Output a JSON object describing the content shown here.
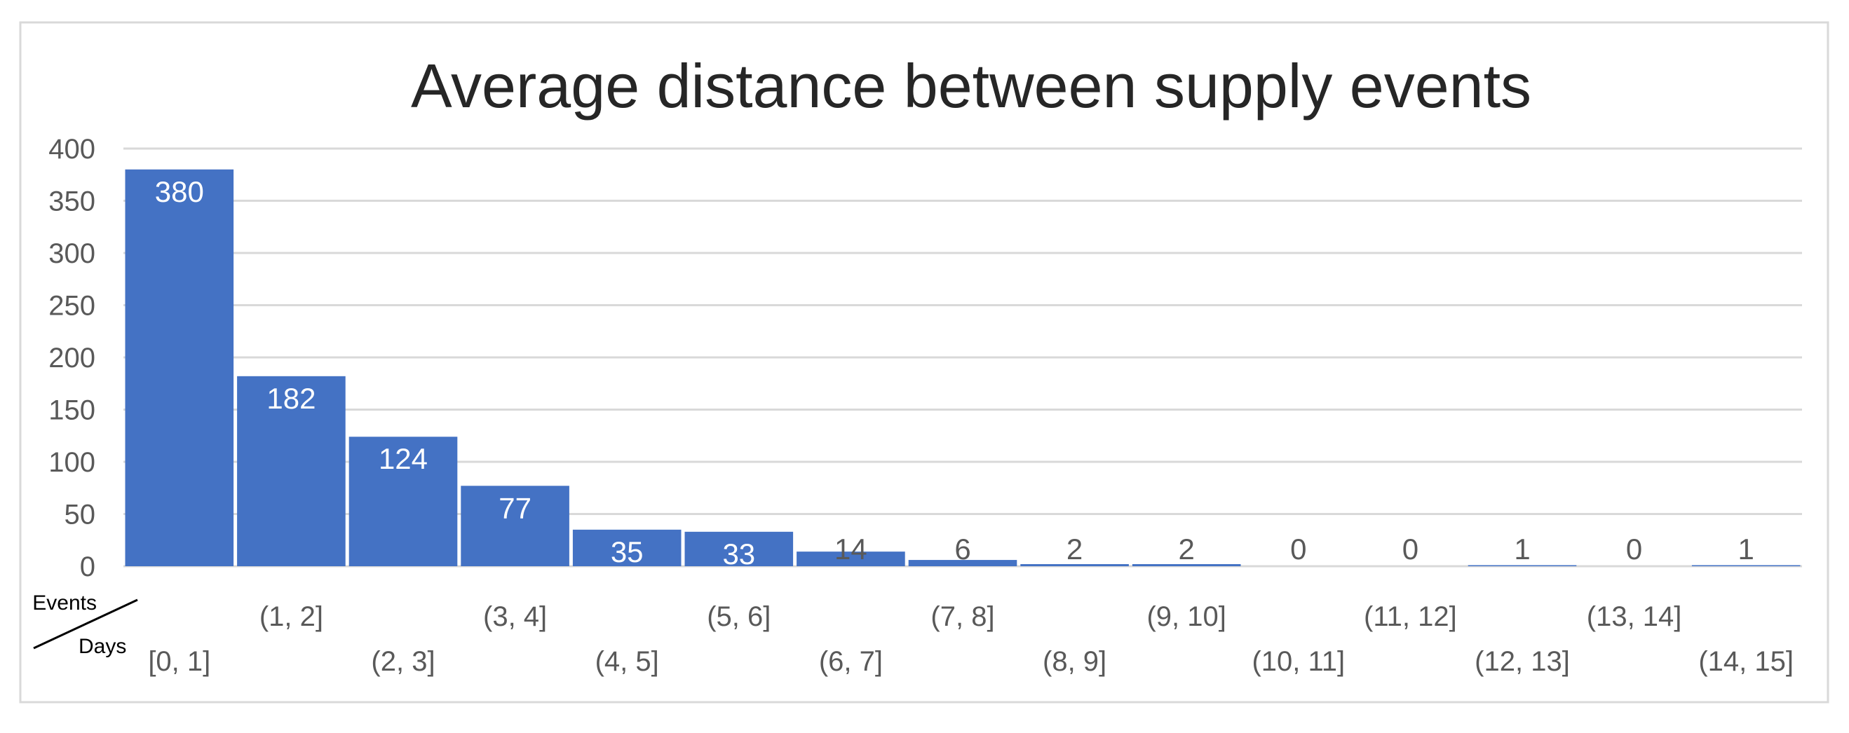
{
  "chart_data": {
    "type": "bar",
    "title": "Average distance between supply events",
    "xlabel": "Days",
    "ylabel": "Events",
    "categories": [
      "[0, 1]",
      "(1, 2]",
      "(2, 3]",
      "(3, 4]",
      "(4, 5]",
      "(5, 6]",
      "(6, 7]",
      "(7, 8]",
      "(8, 9]",
      "(9, 10]",
      "(10, 11]",
      "(11, 12]",
      "(12, 13]",
      "(13, 14]",
      "(14, 15]"
    ],
    "values": [
      380,
      182,
      124,
      77,
      35,
      33,
      14,
      6,
      2,
      2,
      0,
      0,
      1,
      0,
      1
    ],
    "ylim": [
      0,
      400
    ],
    "yticks": [
      0,
      50,
      100,
      150,
      200,
      250,
      300,
      350,
      400
    ],
    "grid": true,
    "legend": "none",
    "colors": {
      "bar": "#4472c4",
      "grid": "#d9d9d9",
      "text": "#595959",
      "title": "#262626",
      "label_inside": "#ffffff"
    }
  }
}
